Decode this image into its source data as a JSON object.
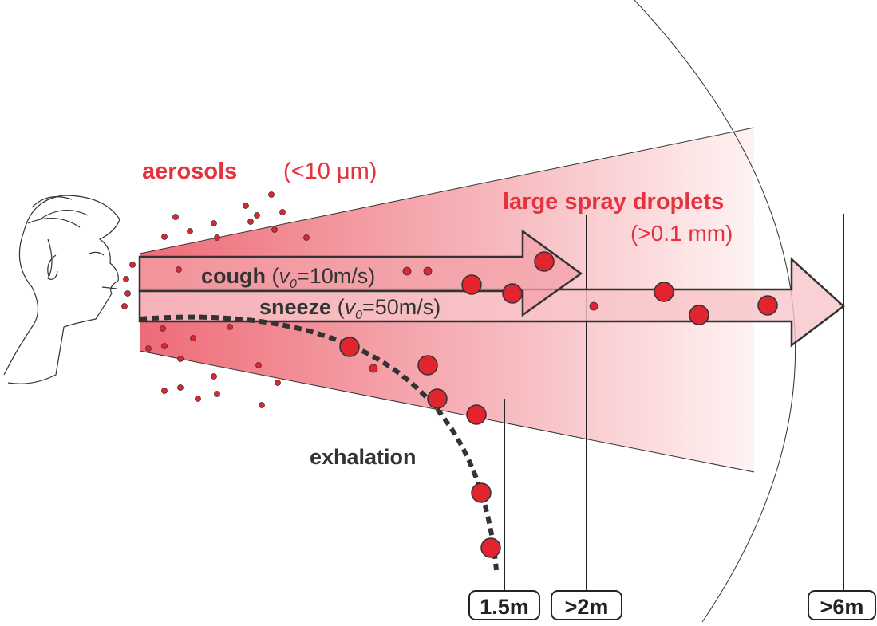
{
  "labels": {
    "aerosols": "aerosols",
    "aerosols_size": "(<10 μm)",
    "droplets": "large spray droplets",
    "droplets_size": "(>0.1 mm)",
    "cough": {
      "name": "cough",
      "open": "(",
      "v": "v",
      "sub": "0",
      "rest": "=10m/s)"
    },
    "sneeze": {
      "name": "sneeze",
      "open": "(",
      "v": "v",
      "sub": "0",
      "rest": "=50m/s)"
    },
    "exhalation": "exhalation"
  },
  "distances": [
    "1.5m",
    ">2m",
    ">6m"
  ]
}
